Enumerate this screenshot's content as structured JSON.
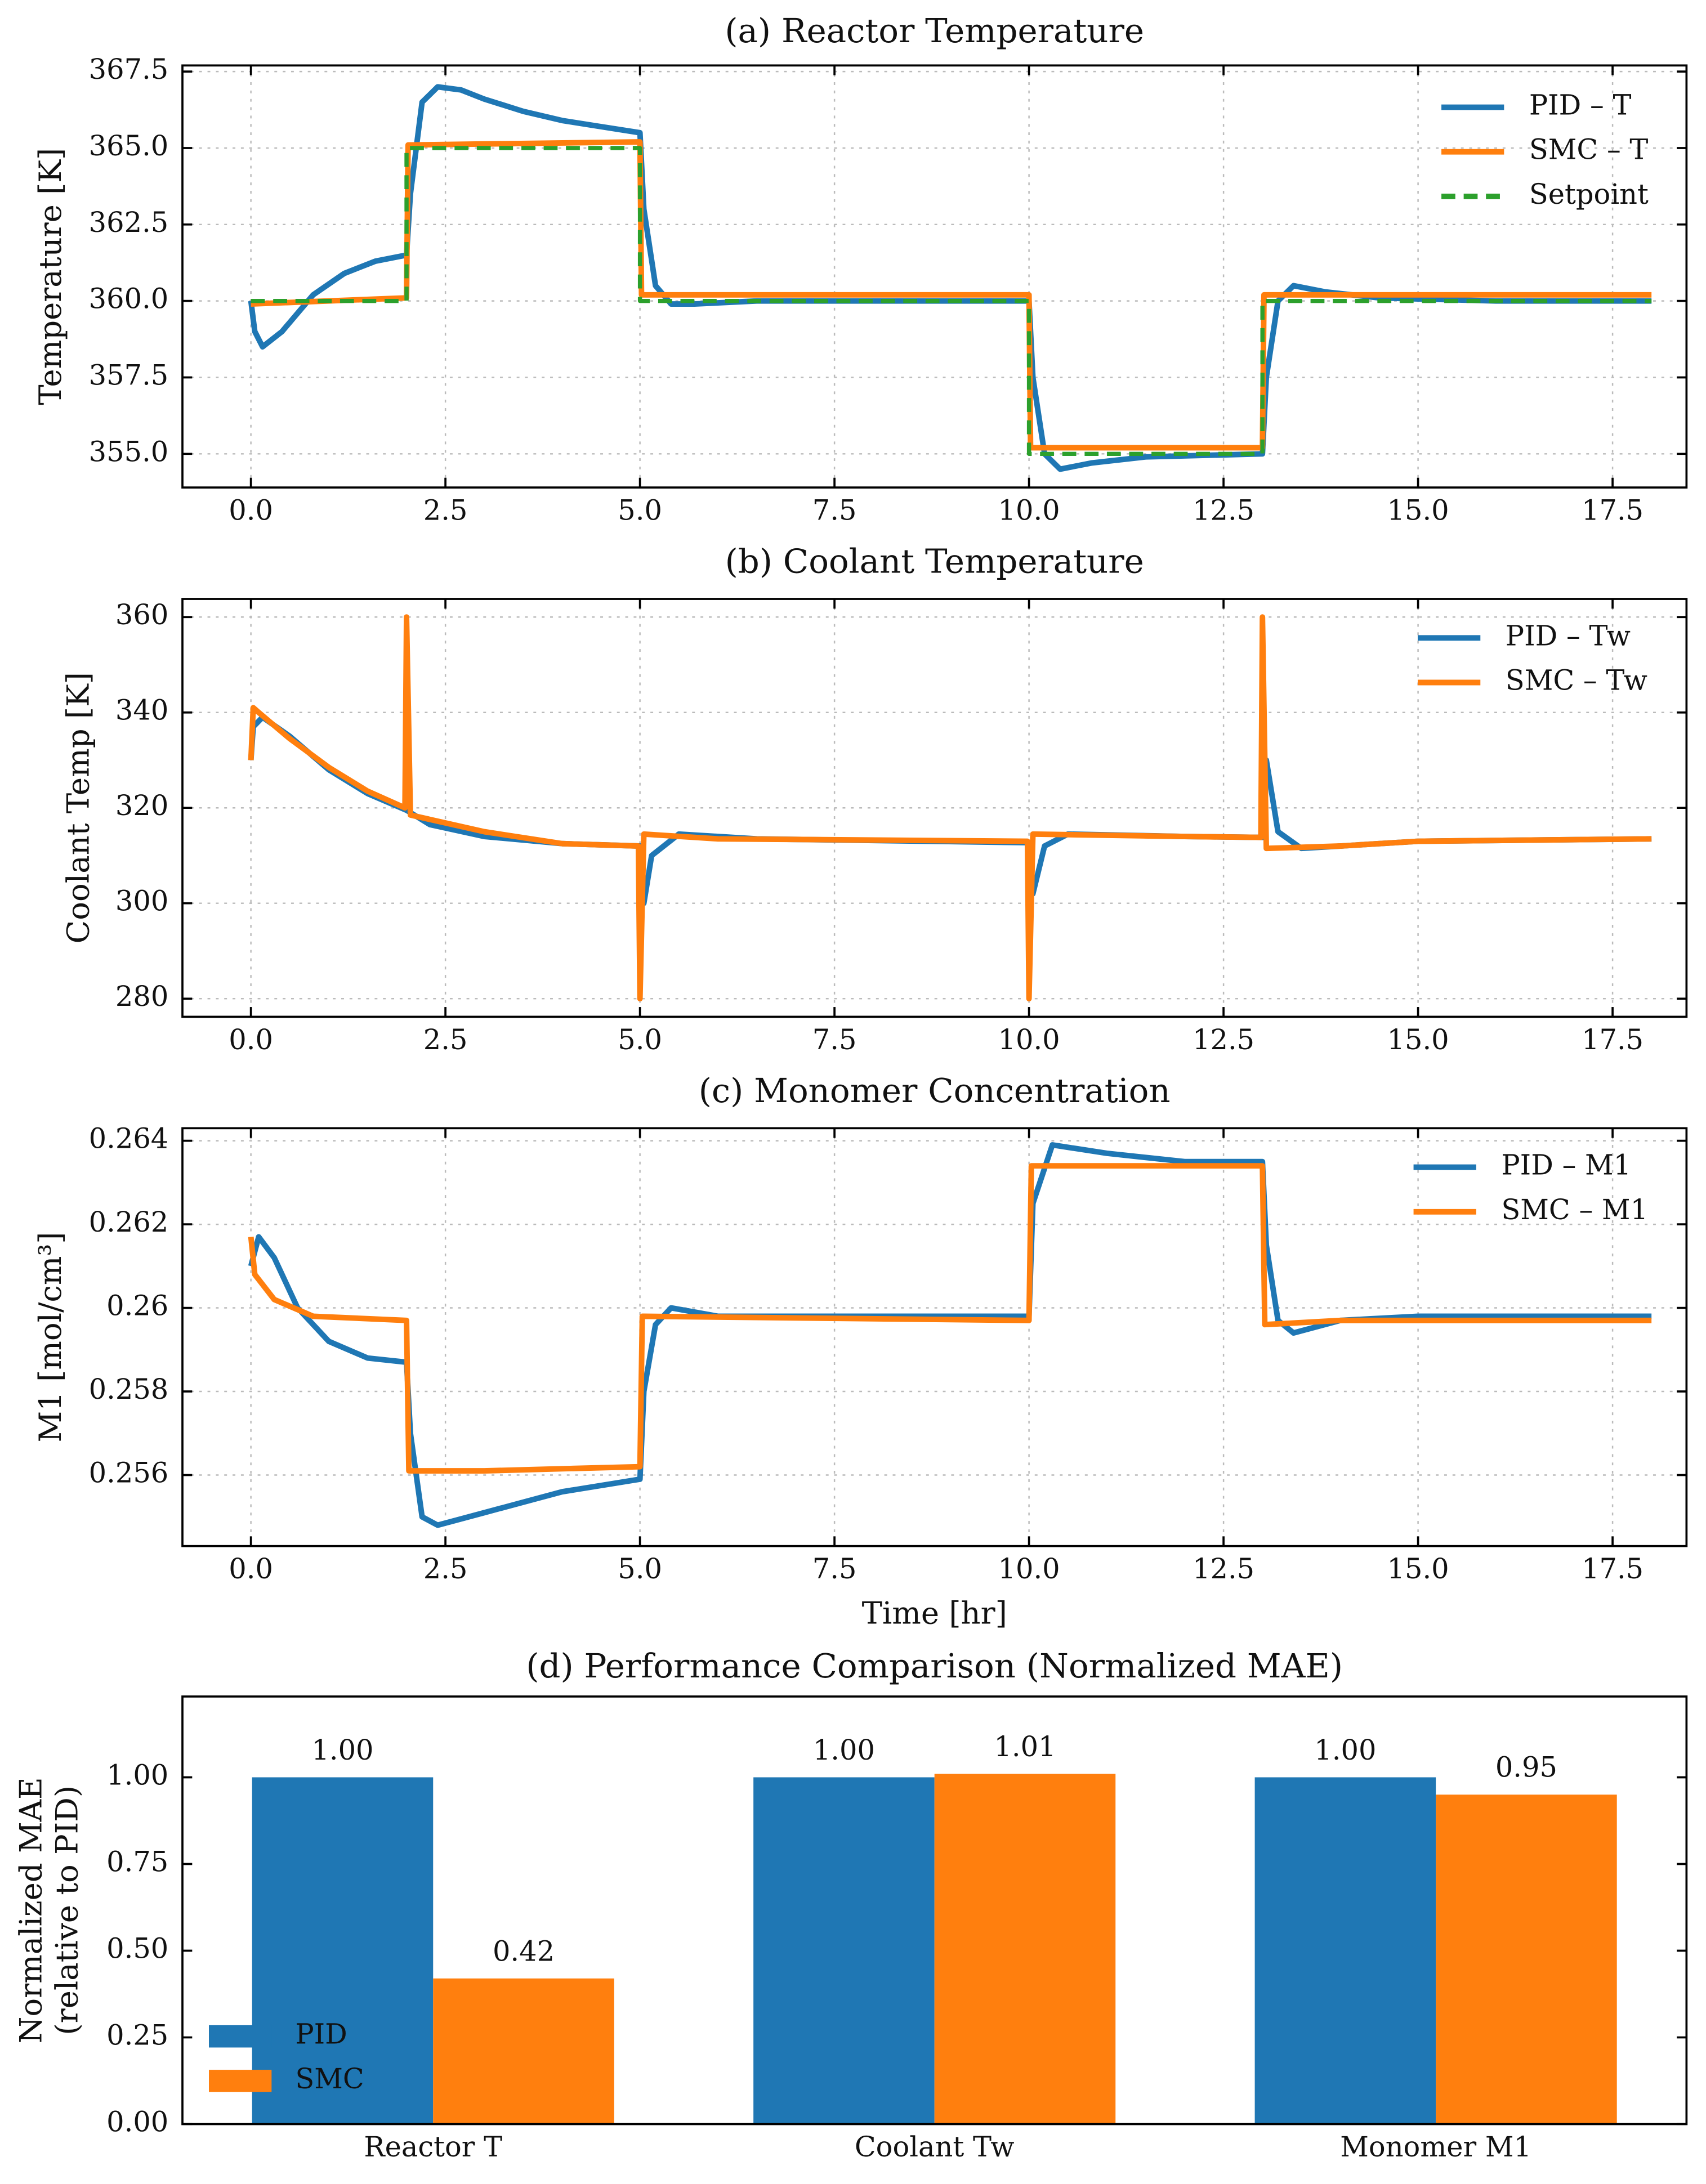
{
  "chart_data": [
    {
      "type": "line",
      "title": "(a) Reactor Temperature",
      "ylabel": [
        "Temperature [K]"
      ],
      "xlim": [
        -0.88,
        18.45
      ],
      "ylim": [
        353.9,
        367.7
      ],
      "xticks": [
        {
          "value": 0,
          "label": "0.0"
        },
        2.5,
        {
          "value": 5,
          "label": "5.0"
        },
        7.5,
        {
          "value": 10,
          "label": "10.0"
        },
        12.5,
        {
          "value": 15,
          "label": "15.0"
        },
        17.5
      ],
      "yticks": [
        {
          "value": 355,
          "label": "355.0"
        },
        357.5,
        {
          "value": 360,
          "label": "360.0"
        },
        362.5,
        {
          "value": 365,
          "label": "365.0"
        },
        367.5
      ],
      "grid": true,
      "legend": "upper right",
      "series": [
        {
          "name": "PID – T",
          "color": "#1f77b4",
          "linestyle": "solid",
          "x": [
            0,
            0.05,
            0.15,
            0.4,
            0.8,
            1.2,
            1.6,
            2.0,
            2.05,
            2.2,
            2.4,
            2.7,
            3,
            3.5,
            4,
            4.5,
            5,
            5.05,
            5.2,
            5.4,
            5.7,
            6.5,
            10,
            10.05,
            10.2,
            10.4,
            10.8,
            11.5,
            13,
            13.05,
            13.2,
            13.4,
            13.8,
            14.5,
            16,
            18
          ],
          "values": [
            360,
            359,
            358.5,
            359,
            360.2,
            360.9,
            361.3,
            361.5,
            363.5,
            366.5,
            367,
            366.9,
            366.6,
            366.2,
            365.9,
            365.7,
            365.5,
            363,
            360.5,
            359.9,
            359.9,
            360,
            360,
            357.5,
            355,
            354.5,
            354.7,
            354.9,
            355,
            357.5,
            360,
            360.5,
            360.3,
            360.1,
            360,
            360
          ]
        },
        {
          "name": "SMC – T",
          "color": "#ff7f0e",
          "linestyle": "solid",
          "x": [
            0,
            2,
            2.02,
            5,
            5.02,
            10,
            10.02,
            13,
            13.02,
            18
          ],
          "values": [
            359.9,
            360.1,
            365.1,
            365.2,
            360.2,
            360.2,
            355.2,
            355.2,
            360.2,
            360.2
          ]
        },
        {
          "name": "Setpoint",
          "color": "#2ca02c",
          "linestyle": "dashed",
          "x": [
            0,
            2,
            2,
            5,
            5,
            10,
            10,
            13,
            13,
            18
          ],
          "values": [
            360,
            360,
            365,
            365,
            360,
            360,
            355,
            355,
            360,
            360
          ]
        }
      ]
    },
    {
      "type": "line",
      "title": "(b) Coolant Temperature",
      "ylabel": [
        "Coolant Temp [K]"
      ],
      "xlim": [
        -0.88,
        18.45
      ],
      "ylim": [
        276.2,
        363.8
      ],
      "xticks": [
        {
          "value": 0,
          "label": "0.0"
        },
        2.5,
        {
          "value": 5,
          "label": "5.0"
        },
        7.5,
        {
          "value": 10,
          "label": "10.0"
        },
        12.5,
        {
          "value": 15,
          "label": "15.0"
        },
        17.5
      ],
      "yticks": [
        280,
        300,
        320,
        340,
        360
      ],
      "grid": true,
      "legend": "upper right",
      "series": [
        {
          "name": "PID – Tw",
          "color": "#1f77b4",
          "linestyle": "solid",
          "x": [
            0,
            0.03,
            0.15,
            0.5,
            1,
            1.5,
            2,
            2.3,
            3,
            4,
            5,
            5.05,
            5.15,
            5.5,
            6.5,
            10,
            10.05,
            10.2,
            10.5,
            12,
            13,
            13.05,
            13.2,
            13.5,
            14,
            15,
            18
          ],
          "values": [
            330,
            337,
            339,
            335,
            328,
            323,
            319.5,
            316.5,
            314,
            312.5,
            312,
            300,
            310,
            314.5,
            313.5,
            312.7,
            302,
            312,
            314.5,
            314,
            313.8,
            330,
            315,
            311.5,
            312,
            313,
            313.5
          ]
        },
        {
          "name": "SMC – Tw",
          "color": "#ff7f0e",
          "linestyle": "solid",
          "x": [
            0,
            0.03,
            0.1,
            0.5,
            1,
            1.5,
            1.98,
            2,
            2.05,
            3,
            4,
            4.98,
            5,
            5.05,
            6,
            9.98,
            10,
            10.05,
            12,
            12.98,
            13,
            13.05,
            14,
            15,
            18
          ],
          "values": [
            330,
            341,
            340,
            334.5,
            328.5,
            323.5,
            320,
            360,
            318.5,
            315,
            312.5,
            312,
            280,
            314.5,
            313.5,
            313,
            280,
            314.5,
            314,
            313.8,
            360,
            311.5,
            312,
            313,
            313.5
          ]
        }
      ]
    },
    {
      "type": "line",
      "title": "(c) Monomer Concentration",
      "ylabel": [
        "M1 [mol/cm³]"
      ],
      "xlabel": "Time [hr]",
      "xlim": [
        -0.88,
        18.45
      ],
      "ylim": [
        0.2543,
        0.2643
      ],
      "xticks": [
        {
          "value": 0,
          "label": "0.0"
        },
        2.5,
        {
          "value": 5,
          "label": "5.0"
        },
        7.5,
        {
          "value": 10,
          "label": "10.0"
        },
        12.5,
        {
          "value": 15,
          "label": "15.0"
        },
        17.5
      ],
      "yticks": [
        0.256,
        0.258,
        0.26,
        0.262,
        0.264
      ],
      "grid": true,
      "legend": "upper right",
      "series": [
        {
          "name": "PID – M1",
          "color": "#1f77b4",
          "linestyle": "solid",
          "x": [
            0,
            0.1,
            0.3,
            0.6,
            1,
            1.5,
            2,
            2.05,
            2.2,
            2.4,
            3,
            4,
            5,
            5.05,
            5.2,
            5.4,
            6,
            10,
            10.05,
            10.3,
            11,
            12,
            13,
            13.05,
            13.2,
            13.4,
            14,
            15,
            18
          ],
          "values": [
            0.261,
            0.2617,
            0.2612,
            0.26,
            0.2592,
            0.2588,
            0.2587,
            0.257,
            0.255,
            0.2548,
            0.2551,
            0.2556,
            0.2559,
            0.258,
            0.2596,
            0.26,
            0.2598,
            0.2598,
            0.2625,
            0.2639,
            0.2637,
            0.2635,
            0.2635,
            0.2615,
            0.2597,
            0.2594,
            0.2597,
            0.2598,
            0.2598
          ]
        },
        {
          "name": "SMC – M1",
          "color": "#ff7f0e",
          "linestyle": "solid",
          "x": [
            0,
            0.05,
            0.3,
            0.8,
            2,
            2.03,
            3,
            5,
            5.03,
            10,
            10.03,
            13,
            13.03,
            14,
            18
          ],
          "values": [
            0.2617,
            0.2608,
            0.2602,
            0.2598,
            0.2597,
            0.2561,
            0.2561,
            0.2562,
            0.2598,
            0.2597,
            0.2634,
            0.2634,
            0.2596,
            0.2597,
            0.2597
          ]
        }
      ]
    },
    {
      "type": "bar",
      "title": "(d) Performance Comparison (Normalized MAE)",
      "ylabel": [
        "Normalized MAE",
        "(relative to PID)"
      ],
      "categories": [
        "Reactor T",
        "Coolant Tw",
        "Monomer M1"
      ],
      "ylim": [
        0,
        1.233
      ],
      "yticks": [
        {
          "value": 0,
          "label": "0.00"
        },
        0.25,
        {
          "value": 0.5,
          "label": "0.50"
        },
        0.75,
        {
          "value": 1,
          "label": "1.00"
        }
      ],
      "grid": false,
      "legend": "lower left",
      "series": [
        {
          "name": "PID",
          "color": "#1f77b4",
          "values": [
            1,
            1,
            1
          ],
          "value_labels": [
            "1.00",
            "1.00",
            "1.00"
          ]
        },
        {
          "name": "SMC",
          "color": "#ff7f0e",
          "values": [
            0.42,
            1.01,
            0.95
          ],
          "value_labels": [
            "0.42",
            "1.01",
            "0.95"
          ]
        }
      ]
    }
  ]
}
